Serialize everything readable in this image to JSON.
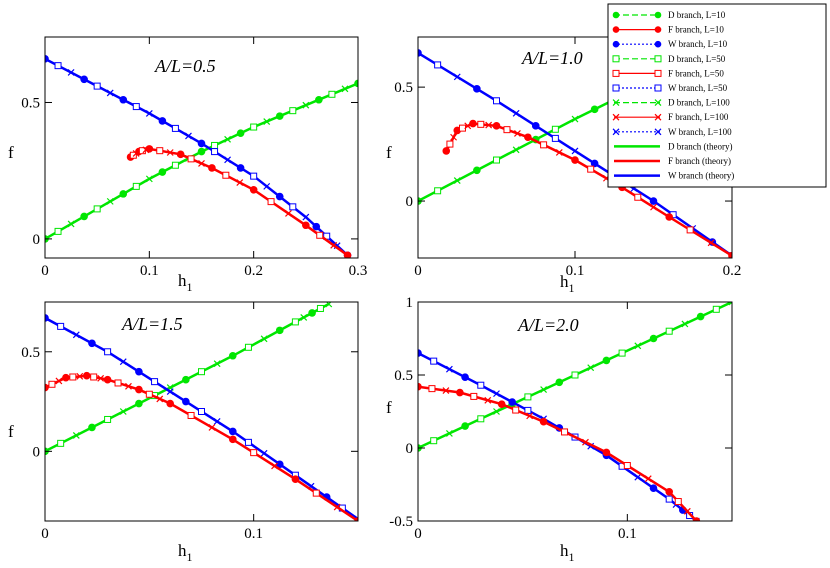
{
  "figure": {
    "background": "#ffffff"
  },
  "legend": {
    "position": "top-right",
    "entries": [
      {
        "label": "D branch, L=10",
        "color": "#00e600",
        "dash": "dashed",
        "marker": "circle"
      },
      {
        "label": "F branch, L=10",
        "color": "#ff0000",
        "dash": "solid",
        "marker": "circle"
      },
      {
        "label": "W branch, L=10",
        "color": "#0000ff",
        "dash": "dotted",
        "marker": "circle"
      },
      {
        "label": "D branch, L=50",
        "color": "#00e600",
        "dash": "dashed",
        "marker": "square"
      },
      {
        "label": "F branch, L=50",
        "color": "#ff0000",
        "dash": "solid",
        "marker": "square"
      },
      {
        "label": "W branch, L=50",
        "color": "#0000ff",
        "dash": "dotted",
        "marker": "square"
      },
      {
        "label": "D branch, L=100",
        "color": "#00e600",
        "dash": "dashed",
        "marker": "x"
      },
      {
        "label": "F branch, L=100",
        "color": "#ff0000",
        "dash": "solid",
        "marker": "x"
      },
      {
        "label": "W branch, L=100",
        "color": "#0000ff",
        "dash": "dotted",
        "marker": "x"
      },
      {
        "label": "D branch (theory)",
        "color": "#00e600",
        "dash": "solid",
        "marker": "none"
      },
      {
        "label": "F branch (theory)",
        "color": "#ff0000",
        "dash": "solid",
        "marker": "none"
      },
      {
        "label": "W branch (theory)",
        "color": "#0000ff",
        "dash": "solid",
        "marker": "none"
      }
    ]
  },
  "chart_data": [
    {
      "type": "line",
      "title": "A/L=0.5",
      "xlabel": "h",
      "xlabel_sub": "1",
      "ylabel": "f",
      "xlim": [
        0,
        0.3
      ],
      "ylim": [
        -0.07,
        0.74
      ],
      "xticks": [
        0,
        0.1,
        0.2,
        0.3
      ],
      "xticklabels": [
        "0",
        "0.1",
        "0.2",
        "0.3"
      ],
      "yticks": [
        0,
        0.5
      ],
      "yticklabels": [
        "0",
        "0.5"
      ],
      "series": [
        {
          "branch": "D",
          "x": [
            0,
            0.05,
            0.1,
            0.15,
            0.2,
            0.25,
            0.3
          ],
          "y": [
            0,
            0.11,
            0.22,
            0.32,
            0.41,
            0.49,
            0.57
          ]
        },
        {
          "branch": "W",
          "x": [
            0,
            0.05,
            0.1,
            0.15,
            0.2,
            0.25,
            0.29
          ],
          "y": [
            0.66,
            0.56,
            0.46,
            0.35,
            0.23,
            0.08,
            -0.06
          ]
        },
        {
          "branch": "F",
          "x": [
            0.082,
            0.09,
            0.1,
            0.13,
            0.16,
            0.2,
            0.25,
            0.29
          ],
          "y": [
            0.3,
            0.32,
            0.33,
            0.31,
            0.26,
            0.18,
            0.05,
            -0.06
          ]
        }
      ]
    },
    {
      "type": "line",
      "title": "A/L=1.0",
      "xlabel": "h",
      "xlabel_sub": "1",
      "ylabel": "f",
      "xlim": [
        0,
        0.2
      ],
      "ylim": [
        -0.25,
        0.72
      ],
      "xticks": [
        0,
        0.1,
        0.2
      ],
      "xticklabels": [
        "0",
        "0.1",
        "0.2"
      ],
      "yticks": [
        0,
        0.5
      ],
      "yticklabels": [
        "0",
        "0.5"
      ],
      "series": [
        {
          "branch": "D",
          "x": [
            0,
            0.05,
            0.1,
            0.15,
            0.2
          ],
          "y": [
            0,
            0.18,
            0.36,
            0.53,
            0.7
          ]
        },
        {
          "branch": "W",
          "x": [
            0,
            0.05,
            0.1,
            0.15,
            0.2
          ],
          "y": [
            0.65,
            0.44,
            0.22,
            0.0,
            -0.24
          ]
        },
        {
          "branch": "F",
          "x": [
            0.018,
            0.025,
            0.035,
            0.05,
            0.07,
            0.1,
            0.13,
            0.16,
            0.2
          ],
          "y": [
            0.22,
            0.31,
            0.34,
            0.33,
            0.28,
            0.18,
            0.06,
            -0.07,
            -0.24
          ]
        }
      ]
    },
    {
      "type": "line",
      "title": "A/L=1.5",
      "xlabel": "h",
      "xlabel_sub": "1",
      "ylabel": "f",
      "xlim": [
        0,
        0.15
      ],
      "ylim": [
        -0.35,
        0.75
      ],
      "xticks": [
        0,
        0.1
      ],
      "xticklabels": [
        "0",
        "0.1"
      ],
      "yticks": [
        0,
        0.5
      ],
      "yticklabels": [
        "0",
        "0.5"
      ],
      "series": [
        {
          "branch": "D",
          "x": [
            0,
            0.03,
            0.06,
            0.09,
            0.12,
            0.136
          ],
          "y": [
            0,
            0.16,
            0.32,
            0.48,
            0.65,
            0.74
          ]
        },
        {
          "branch": "W",
          "x": [
            0,
            0.03,
            0.06,
            0.09,
            0.12,
            0.15
          ],
          "y": [
            0.67,
            0.5,
            0.3,
            0.1,
            -0.12,
            -0.34
          ]
        },
        {
          "branch": "F",
          "x": [
            0,
            0.01,
            0.02,
            0.03,
            0.045,
            0.06,
            0.09,
            0.12,
            0.15
          ],
          "y": [
            0.32,
            0.37,
            0.38,
            0.36,
            0.31,
            0.24,
            0.06,
            -0.14,
            -0.35
          ]
        }
      ]
    },
    {
      "type": "line",
      "title": "A/L=2.0",
      "xlabel": "h",
      "xlabel_sub": "1",
      "ylabel": "f",
      "xlim": [
        0,
        0.15
      ],
      "ylim": [
        -0.5,
        1.0
      ],
      "xticks": [
        0,
        0.1
      ],
      "xticklabels": [
        "0",
        "0.1"
      ],
      "yticks": [
        -0.5,
        0,
        0.5,
        1
      ],
      "yticklabels": [
        "-0.5",
        "0",
        "0.5",
        "1"
      ],
      "series": [
        {
          "branch": "D",
          "x": [
            0,
            0.03,
            0.06,
            0.09,
            0.12,
            0.15
          ],
          "y": [
            0,
            0.2,
            0.4,
            0.6,
            0.8,
            1.0
          ]
        },
        {
          "branch": "W",
          "x": [
            0,
            0.03,
            0.06,
            0.09,
            0.12,
            0.133
          ],
          "y": [
            0.65,
            0.43,
            0.2,
            -0.05,
            -0.35,
            -0.5
          ]
        },
        {
          "branch": "F",
          "x": [
            0,
            0.02,
            0.04,
            0.06,
            0.09,
            0.12,
            0.133
          ],
          "y": [
            0.42,
            0.38,
            0.3,
            0.18,
            -0.03,
            -0.3,
            -0.5
          ]
        }
      ]
    }
  ]
}
